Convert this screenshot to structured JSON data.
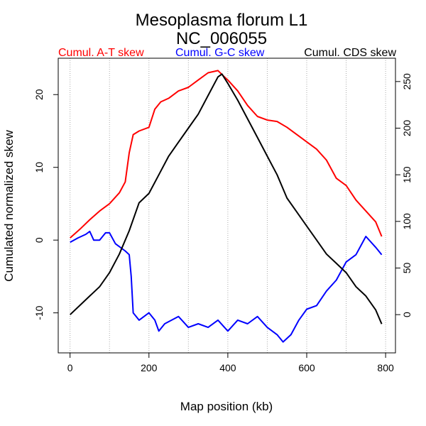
{
  "chart_data": {
    "type": "line",
    "title": "Mesoplasma florum L1",
    "subtitle": "NC_006055",
    "xlabel": "Map position (kb)",
    "ylabel": "Cumulated normalized skew",
    "xlim": [
      -30,
      825
    ],
    "ylim_left": [
      -15.5,
      25
    ],
    "ylim_right": [
      -41,
      275
    ],
    "x_ticks": [
      0,
      200,
      400,
      600,
      800
    ],
    "y_ticks_left": [
      -10,
      0,
      10,
      20
    ],
    "y_ticks_right": [
      0,
      50,
      100,
      150,
      200,
      250
    ],
    "gridlines_x": [
      0,
      100,
      200,
      300,
      400,
      500,
      600,
      700,
      800
    ],
    "legend": [
      "Cumul. A-T skew",
      "Cumul. G-C skew",
      "Cumul. CDS skew"
    ],
    "series": [
      {
        "name": "Cumul. A-T skew",
        "axis": "left",
        "color": "#ff0000",
        "x": [
          0,
          25,
          50,
          75,
          100,
          125,
          140,
          150,
          160,
          175,
          200,
          215,
          230,
          250,
          275,
          300,
          325,
          350,
          375,
          390,
          400,
          425,
          450,
          475,
          500,
          525,
          550,
          575,
          600,
          625,
          650,
          675,
          700,
          725,
          750,
          775,
          790
        ],
        "y": [
          0.3,
          1.5,
          2.8,
          4,
          5,
          6.5,
          8,
          12,
          14.5,
          15,
          15.5,
          18,
          19,
          19.5,
          20.5,
          21,
          22,
          23,
          23.3,
          22.5,
          22,
          20.5,
          18.5,
          17,
          16.5,
          16.3,
          15.5,
          14.5,
          13.5,
          12.5,
          11,
          8.5,
          7.5,
          5.5,
          4,
          2.5,
          0.5
        ]
      },
      {
        "name": "Cumul. G-C skew",
        "axis": "left",
        "color": "#0000ff",
        "x": [
          0,
          20,
          40,
          50,
          60,
          75,
          90,
          100,
          115,
          140,
          150,
          155,
          160,
          175,
          200,
          215,
          225,
          240,
          275,
          300,
          325,
          350,
          375,
          400,
          425,
          450,
          475,
          500,
          525,
          540,
          560,
          580,
          600,
          625,
          650,
          675,
          700,
          725,
          750,
          775,
          790
        ],
        "y": [
          -0.3,
          0.3,
          0.8,
          1.2,
          0,
          0,
          1,
          1,
          -0.5,
          -1.5,
          -2,
          -5,
          -10,
          -11,
          -10,
          -11,
          -12.5,
          -11.5,
          -10.5,
          -12,
          -11.5,
          -12,
          -11,
          -12.5,
          -11,
          -11.5,
          -10.5,
          -12,
          -13,
          -14,
          -13,
          -11,
          -9.5,
          -9,
          -7,
          -5.5,
          -3,
          -2,
          0.5,
          -1,
          -2
        ]
      },
      {
        "name": "Cumul. CDS skew",
        "axis": "right",
        "color": "#000000",
        "x": [
          0,
          25,
          50,
          75,
          100,
          125,
          150,
          175,
          200,
          225,
          250,
          275,
          300,
          325,
          350,
          375,
          385,
          400,
          425,
          450,
          475,
          500,
          525,
          550,
          575,
          600,
          625,
          650,
          675,
          700,
          725,
          750,
          775,
          790
        ],
        "y": [
          0,
          10,
          20,
          30,
          45,
          65,
          90,
          120,
          130,
          150,
          170,
          185,
          200,
          215,
          235,
          255,
          258,
          248,
          230,
          210,
          190,
          170,
          150,
          125,
          110,
          95,
          80,
          65,
          55,
          45,
          30,
          20,
          5,
          -10
        ]
      }
    ]
  }
}
